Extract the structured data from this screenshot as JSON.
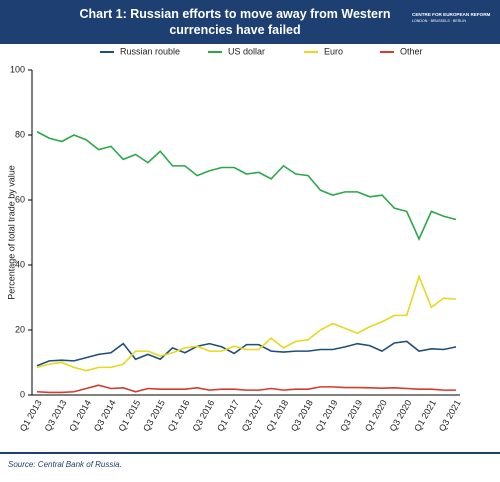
{
  "chart_data": {
    "type": "line",
    "title": "Chart 1: Russian efforts to move away from Western currencies have failed",
    "y_label": "Percentage of total trade by value",
    "source": "Source: Central Bank of Russia.",
    "categories": [
      "Q1 2013",
      null,
      "Q3 2013",
      null,
      "Q1 2014",
      null,
      "Q3 2014",
      null,
      "Q1 2015",
      null,
      "Q3 2015",
      null,
      "Q1 2016",
      null,
      "Q3 2016",
      null,
      "Q1 2017",
      null,
      "Q3 2017",
      null,
      "Q1 2018",
      null,
      "Q3 2018",
      null,
      "Q1 2019",
      null,
      "Q3 2019",
      null,
      "Q1 2020",
      null,
      "Q3 2020",
      null,
      "Q1 2021",
      null,
      "Q3 2021"
    ],
    "series": [
      {
        "name": "Russian rouble",
        "color": "#1f4e79",
        "values": [
          9,
          10.5,
          10.7,
          10.5,
          11.5,
          12.5,
          13,
          15.8,
          11,
          12.5,
          11,
          14.5,
          13,
          15,
          15.8,
          14.8,
          12.8,
          15.5,
          15.5,
          13.5,
          13.2,
          13.5,
          13.5,
          14,
          14,
          14.8,
          15.8,
          15.2,
          13.5,
          16,
          16.5,
          13.5,
          14.2,
          14,
          14.8
        ]
      },
      {
        "name": "US dollar",
        "color": "#2aa84a",
        "values": [
          81,
          79,
          78,
          80,
          78.5,
          75.5,
          76.5,
          72.5,
          74,
          71.5,
          75,
          70.5,
          70.5,
          67.5,
          69,
          70,
          70,
          68,
          68.5,
          66.5,
          70.5,
          68,
          67.5,
          63,
          61.5,
          62.5,
          62.5,
          61,
          61.5,
          57.5,
          56.5,
          48,
          56.5,
          55,
          54
        ]
      },
      {
        "name": "Euro",
        "color": "#e6d81e",
        "values": [
          8.5,
          9.5,
          10,
          8.5,
          7.5,
          8.5,
          8.5,
          9.5,
          13.5,
          13.5,
          12,
          13,
          14.5,
          15,
          13.5,
          13.5,
          15,
          14,
          14,
          17.5,
          14.5,
          16.5,
          17,
          20,
          22,
          20.5,
          19,
          21,
          22.5,
          24.5,
          24.5,
          36.5,
          27,
          29.8,
          29.5
        ]
      },
      {
        "name": "Other",
        "color": "#d33b2c",
        "values": [
          1,
          0.8,
          0.8,
          1,
          2,
          3,
          2,
          2.2,
          1,
          2,
          1.8,
          1.8,
          1.8,
          2.2,
          1.5,
          1.8,
          1.8,
          1.5,
          1.5,
          2,
          1.5,
          1.8,
          1.8,
          2.5,
          2.5,
          2.3,
          2.3,
          2.2,
          2.1,
          2.2,
          2,
          1.8,
          1.8,
          1.5,
          1.5
        ]
      }
    ],
    "ylim": [
      0,
      100
    ],
    "yticks": [
      0,
      20,
      40,
      60,
      80,
      100
    ],
    "grid": false,
    "legend": "top"
  },
  "logo": {
    "name": "CENTRE FOR EUROPEAN REFORM",
    "cities": "LONDON · BRUSSELS · BERLIN"
  }
}
